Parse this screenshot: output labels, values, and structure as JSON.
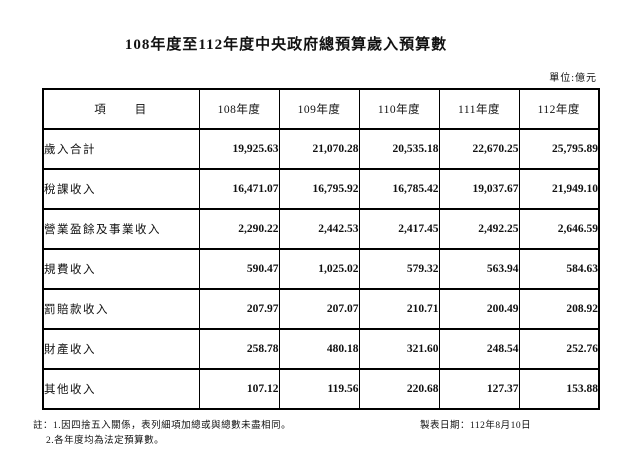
{
  "title": "108年度至112年度中央政府總預算歲入預算數",
  "unit_label": "單位:億元",
  "table": {
    "item_header": "項　　目",
    "year_headers": [
      "108年度",
      "109年度",
      "110年度",
      "111年度",
      "112年度"
    ],
    "rows": [
      {
        "label": "歲入合計",
        "values": [
          "19,925.63",
          "21,070.28",
          "20,535.18",
          "22,670.25",
          "25,795.89"
        ]
      },
      {
        "label": "稅課收入",
        "values": [
          "16,471.07",
          "16,795.92",
          "16,785.42",
          "19,037.67",
          "21,949.10"
        ]
      },
      {
        "label": "營業盈餘及事業收入",
        "values": [
          "2,290.22",
          "2,442.53",
          "2,417.45",
          "2,492.25",
          "2,646.59"
        ]
      },
      {
        "label": "規費收入",
        "values": [
          "590.47",
          "1,025.02",
          "579.32",
          "563.94",
          "584.63"
        ]
      },
      {
        "label": "罰賠款收入",
        "values": [
          "207.97",
          "207.07",
          "210.71",
          "200.49",
          "208.92"
        ]
      },
      {
        "label": "財產收入",
        "values": [
          "258.78",
          "480.18",
          "321.60",
          "248.54",
          "252.76"
        ]
      },
      {
        "label": "其他收入",
        "values": [
          "107.12",
          "119.56",
          "220.68",
          "127.37",
          "153.88"
        ]
      }
    ]
  },
  "footer": {
    "note1": "註：1.因四捨五入關係，表列細項加總或與總數未盡相同。",
    "note2": "2.各年度均為法定預算數。",
    "date_label": "製表日期：112年8月10日"
  }
}
